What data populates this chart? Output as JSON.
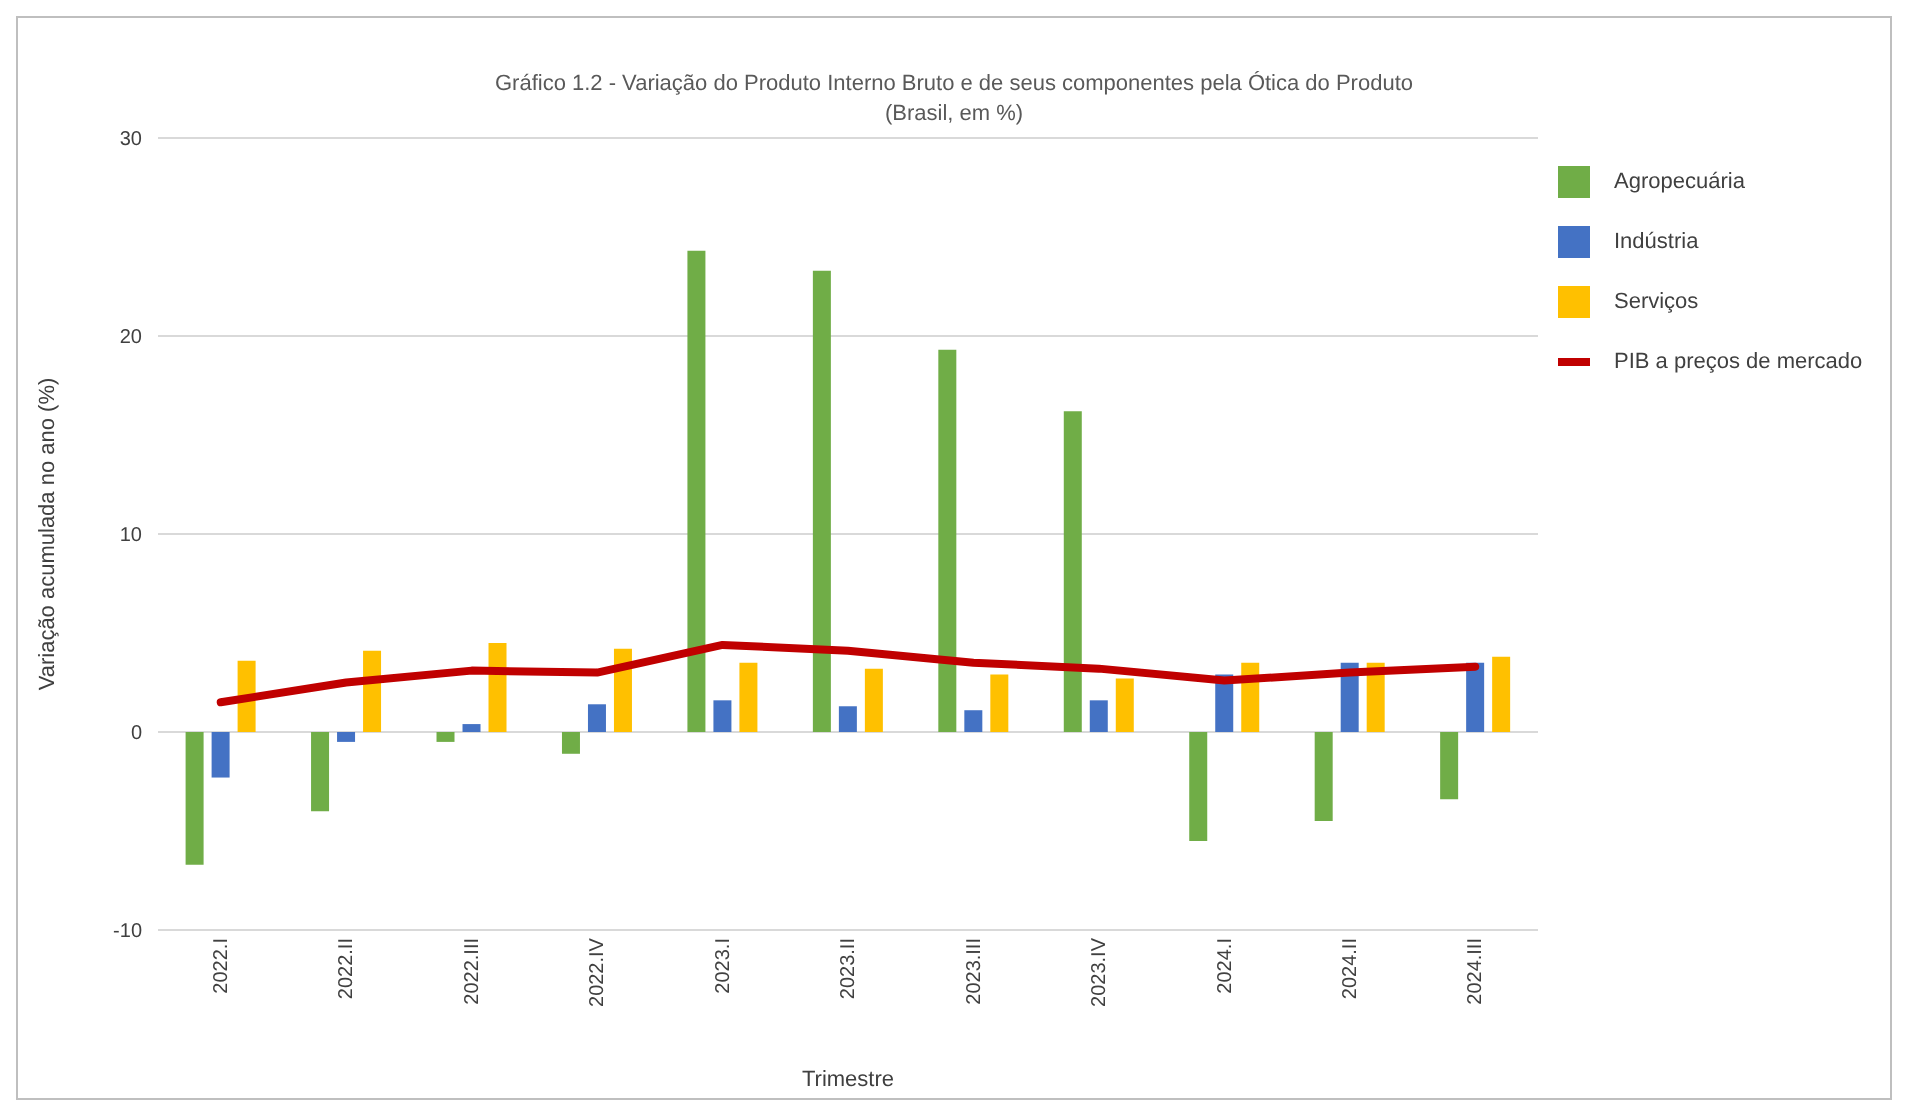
{
  "chart_data": {
    "type": "bar",
    "title": "Gráfico 1.2 - Variação do Produto Interno Bruto e de seus componentes pela Ótica do Produto",
    "subtitle": "(Brasil, em %)",
    "xlabel": "Trimestre",
    "ylabel": "Variação acumulada no ano (%)",
    "categories": [
      "2022.I",
      "2022.II",
      "2022.III",
      "2022.IV",
      "2023.I",
      "2023.II",
      "2023.III",
      "2023.IV",
      "2024.I",
      "2024.II",
      "2024.III"
    ],
    "series": [
      {
        "name": "Agropecuária",
        "color": "#70ad47",
        "values": [
          -6.7,
          -4.0,
          -0.5,
          -1.1,
          24.3,
          23.3,
          19.3,
          16.2,
          -5.5,
          -4.5,
          -3.4
        ]
      },
      {
        "name": "Indústria",
        "color": "#4472c4",
        "values": [
          -2.3,
          -0.5,
          0.4,
          1.4,
          1.6,
          1.3,
          1.1,
          1.6,
          2.9,
          3.5,
          3.5
        ]
      },
      {
        "name": "Serviços",
        "color": "#ffc000",
        "values": [
          3.6,
          4.1,
          4.5,
          4.2,
          3.5,
          3.2,
          2.9,
          2.7,
          3.5,
          3.5,
          3.8
        ]
      },
      {
        "name": "PIB a preços de mercado",
        "color": "#c00000",
        "type": "line",
        "values": [
          1.5,
          2.5,
          3.1,
          3.0,
          4.4,
          4.1,
          3.5,
          3.2,
          2.6,
          3.0,
          3.3
        ]
      }
    ],
    "ylim": [
      -10,
      30
    ],
    "yticks": [
      -10,
      0,
      10,
      20,
      30
    ],
    "grid": "y",
    "legend": "right",
    "marker": "none"
  }
}
